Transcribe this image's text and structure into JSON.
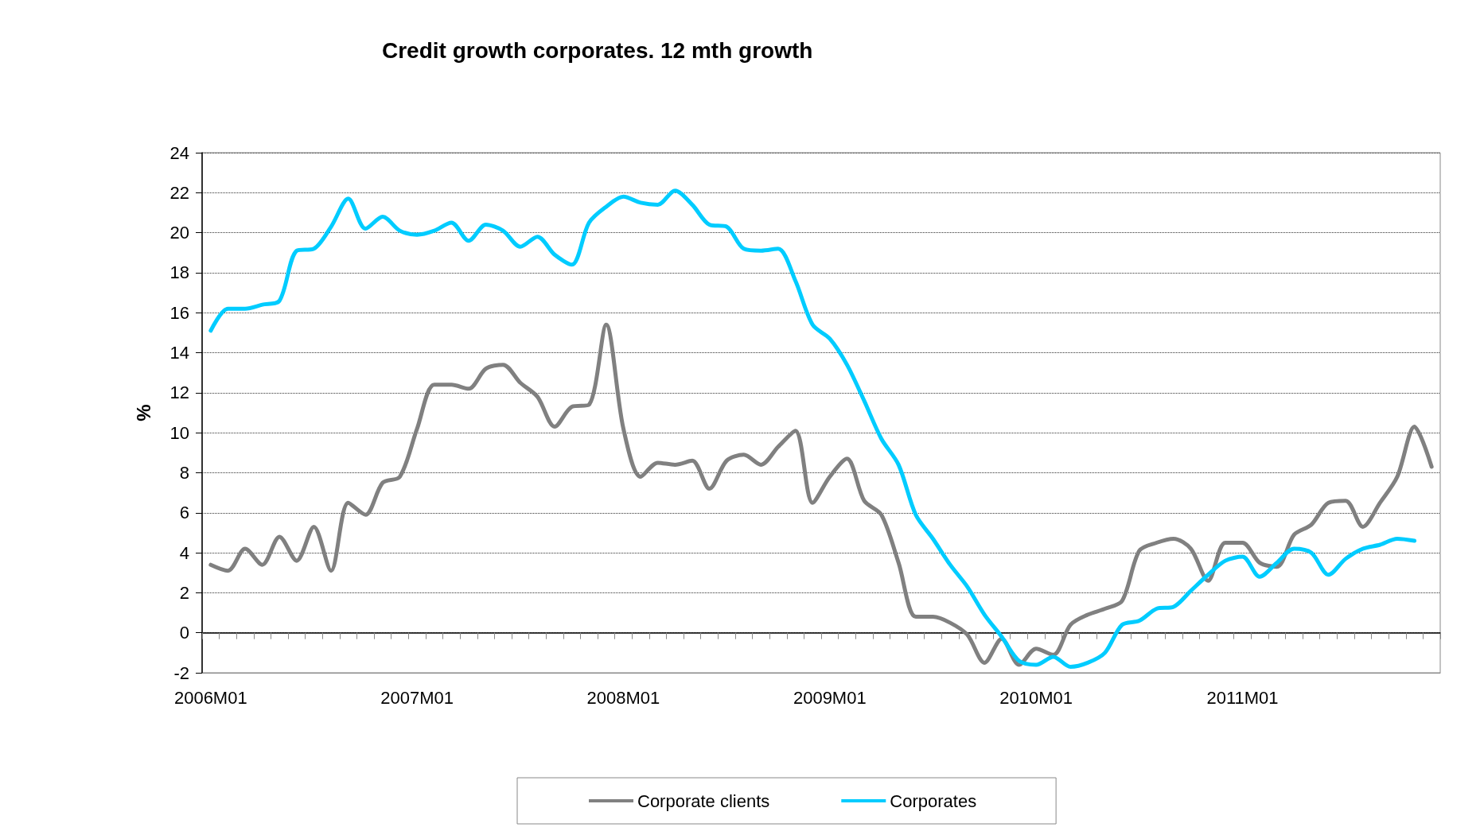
{
  "chart_data": {
    "type": "line",
    "title": "Credit growth corporates. 12 mth growth",
    "ylabel": "%",
    "categories": [
      "2006M01",
      null,
      null,
      null,
      null,
      null,
      null,
      null,
      null,
      null,
      null,
      null,
      "2007M01",
      null,
      null,
      null,
      null,
      null,
      null,
      null,
      null,
      null,
      null,
      null,
      "2008M01",
      null,
      null,
      null,
      null,
      null,
      null,
      null,
      null,
      null,
      null,
      null,
      "2009M01",
      null,
      null,
      null,
      null,
      null,
      null,
      null,
      null,
      null,
      null,
      null,
      "2010M01",
      null,
      null,
      null,
      null,
      null,
      null,
      null,
      null,
      null,
      null,
      null,
      "2011M01",
      null,
      null,
      null,
      null,
      null,
      null,
      null,
      null,
      null,
      null,
      null
    ],
    "series": [
      {
        "name": "Corporate clients",
        "color": "#808080",
        "values": [
          3.4,
          3.1,
          4.2,
          3.4,
          4.8,
          3.6,
          5.3,
          3.1,
          6.5,
          5.9,
          7.5,
          7.8,
          10.2,
          12.4,
          12.4,
          12.2,
          13.2,
          13.4,
          12.5,
          11.8,
          10.3,
          11.3,
          11.4,
          15.4,
          10.2,
          7.8,
          8.5,
          8.4,
          8.6,
          7.2,
          8.6,
          8.9,
          8.4,
          9.3,
          10.1,
          6.5,
          7.8,
          8.7,
          6.6,
          5.9,
          3.5,
          0.8,
          0.8,
          0.5,
          -0.1,
          -1.5,
          -0.3,
          -1.6,
          -0.8,
          -1.1,
          0.4,
          0.9,
          1.2,
          1.6,
          4.1,
          4.5,
          4.7,
          4.2,
          2.6,
          4.5,
          4.5,
          3.5,
          3.3,
          4.9,
          5.4,
          6.5,
          6.6,
          5.3,
          6.5,
          7.8,
          10.3,
          8.3
        ]
      },
      {
        "name": "Corporates",
        "color": "#00ccff",
        "values": [
          15.1,
          16.2,
          16.2,
          16.4,
          16.6,
          19.1,
          19.2,
          20.3,
          21.7,
          20.2,
          20.8,
          20.1,
          19.9,
          20.1,
          20.5,
          19.6,
          20.4,
          20.1,
          19.3,
          19.8,
          18.9,
          18.4,
          20.5,
          21.3,
          21.8,
          21.5,
          21.4,
          22.1,
          21.4,
          20.4,
          20.3,
          19.2,
          19.1,
          19.2,
          17.6,
          15.4,
          14.7,
          13.4,
          11.6,
          9.7,
          8.4,
          5.9,
          4.7,
          3.4,
          2.3,
          0.9,
          -0.2,
          -1.4,
          -1.6,
          -1.2,
          -1.7,
          -1.5,
          -1.0,
          0.4,
          0.6,
          1.2,
          1.3,
          2.1,
          2.9,
          3.6,
          3.8,
          2.8,
          3.5,
          4.2,
          4.0,
          2.9,
          3.7,
          4.2,
          4.4,
          4.7,
          4.6,
          null
        ]
      }
    ],
    "ylim": [
      -2,
      24
    ],
    "yticks": [
      -2,
      0,
      2,
      4,
      6,
      8,
      10,
      12,
      14,
      16,
      18,
      20,
      22,
      24
    ],
    "grid": "y",
    "legend": "bottom",
    "marker": "none",
    "line_style": "solid"
  }
}
